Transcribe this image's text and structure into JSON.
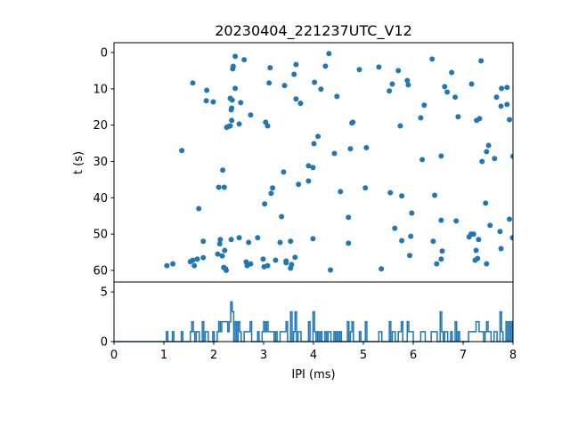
{
  "chart_data": {
    "type": "scatter",
    "title": "20230404_221237UTC_V12",
    "xlabel": "IPI (ms)",
    "ylabel": "t (s)",
    "xlim": [
      0,
      8
    ],
    "ylim": [
      63.2,
      -2.7
    ],
    "y_inverted": true,
    "grid": false,
    "color": "#1f77b4",
    "x_ticks": [
      "0",
      "1",
      "2",
      "3",
      "4",
      "5",
      "6",
      "7",
      "8"
    ],
    "y_ticks": [
      "0",
      "10",
      "20",
      "30",
      "40",
      "50",
      "60"
    ],
    "points": [
      [
        2.43,
        1.06
      ],
      [
        2.61,
        2.0
      ],
      [
        2.39,
        3.8
      ],
      [
        2.38,
        4.5
      ],
      [
        3.13,
        4.2
      ],
      [
        3.65,
        3.3
      ],
      [
        3.61,
        6.0
      ],
      [
        1.58,
        8.4
      ],
      [
        3.11,
        8.4
      ],
      [
        3.42,
        9.1
      ],
      [
        4.02,
        8.2
      ],
      [
        1.86,
        10.4
      ],
      [
        2.43,
        9.9
      ],
      [
        1.85,
        13.3
      ],
      [
        1.99,
        13.6
      ],
      [
        2.33,
        12.6
      ],
      [
        2.37,
        13.1
      ],
      [
        2.54,
        13.8
      ],
      [
        3.65,
        12.8
      ],
      [
        3.74,
        14.0
      ],
      [
        2.36,
        15.3
      ],
      [
        2.35,
        15.8
      ],
      [
        2.74,
        17.2
      ],
      [
        2.36,
        18.7
      ],
      [
        2.51,
        19.7
      ],
      [
        3.04,
        19.2
      ],
      [
        3.08,
        20.2
      ],
      [
        2.26,
        20.6
      ],
      [
        2.29,
        20.4
      ],
      [
        2.33,
        20.2
      ],
      [
        4.09,
        23.1
      ],
      [
        4.01,
        25.1
      ],
      [
        1.36,
        27.0
      ],
      [
        2.18,
        32.4
      ],
      [
        3.4,
        32.9
      ],
      [
        3.9,
        31.2
      ],
      [
        3.99,
        31.7
      ],
      [
        3.7,
        36.3
      ],
      [
        3.9,
        35.4
      ],
      [
        2.1,
        37.1
      ],
      [
        2.21,
        37.1
      ],
      [
        3.18,
        37.3
      ],
      [
        3.15,
        38.8
      ],
      [
        3.02,
        41.7
      ],
      [
        1.7,
        43.0
      ],
      [
        3.36,
        45.2
      ],
      [
        1.79,
        52.0
      ],
      [
        2.13,
        51.5
      ],
      [
        2.12,
        52.7
      ],
      [
        2.35,
        51.5
      ],
      [
        2.51,
        51.0
      ],
      [
        2.7,
        52.3
      ],
      [
        2.88,
        51.0
      ],
      [
        3.33,
        52.3
      ],
      [
        3.54,
        52.0
      ],
      [
        3.99,
        51.3
      ],
      [
        2.08,
        55.5
      ],
      [
        2.17,
        56.0
      ],
      [
        2.22,
        54.5
      ],
      [
        1.79,
        56.5
      ],
      [
        1.67,
        56.9
      ],
      [
        1.58,
        57.2
      ],
      [
        1.53,
        57.6
      ],
      [
        1.61,
        58.7
      ],
      [
        1.18,
        58.2
      ],
      [
        1.06,
        58.7
      ],
      [
        2.2,
        59.2
      ],
      [
        2.24,
        59.6
      ],
      [
        2.25,
        60.0
      ],
      [
        2.65,
        57.7
      ],
      [
        2.67,
        58.7
      ],
      [
        2.74,
        58.2
      ],
      [
        2.99,
        56.9
      ],
      [
        3.01,
        59.0
      ],
      [
        3.08,
        58.7
      ],
      [
        3.24,
        57.2
      ],
      [
        3.45,
        57.4
      ],
      [
        3.45,
        57.9
      ],
      [
        3.56,
        58.4
      ],
      [
        3.54,
        59.4
      ],
      [
        3.63,
        56.4
      ],
      [
        4.31,
        0.3
      ],
      [
        4.24,
        3.75
      ],
      [
        4.15,
        10.1
      ],
      [
        4.92,
        4.7
      ],
      [
        5.31,
        4.0
      ],
      [
        5.7,
        5.0
      ],
      [
        6.38,
        1.8
      ],
      [
        7.36,
        2.3
      ],
      [
        6.77,
        5.5
      ],
      [
        4.47,
        12.1
      ],
      [
        5.52,
        10.6
      ],
      [
        5.58,
        8.7
      ],
      [
        5.88,
        7.7
      ],
      [
        5.9,
        8.9
      ],
      [
        6.63,
        9.4
      ],
      [
        6.68,
        10.9
      ],
      [
        6.84,
        12.3
      ],
      [
        7.17,
        8.7
      ],
      [
        7.77,
        9.9
      ],
      [
        7.88,
        9.6
      ],
      [
        7.67,
        12.3
      ],
      [
        7.76,
        14.8
      ],
      [
        7.88,
        14.3
      ],
      [
        6.22,
        14.5
      ],
      [
        6.15,
        18.0
      ],
      [
        6.9,
        17.7
      ],
      [
        7.27,
        18.7
      ],
      [
        7.33,
        18.2
      ],
      [
        7.93,
        18.5
      ],
      [
        5.74,
        20.2
      ],
      [
        4.77,
        19.4
      ],
      [
        4.79,
        19.2
      ],
      [
        4.42,
        27.8
      ],
      [
        4.74,
        26.5
      ],
      [
        5.06,
        26.2
      ],
      [
        6.18,
        29.5
      ],
      [
        6.56,
        28.5
      ],
      [
        7.51,
        25.6
      ],
      [
        7.47,
        27.3
      ],
      [
        7.38,
        30.0
      ],
      [
        7.63,
        29.2
      ],
      [
        8.0,
        28.6
      ],
      [
        4.54,
        38.3
      ],
      [
        5.04,
        37.3
      ],
      [
        5.54,
        38.6
      ],
      [
        5.77,
        39.5
      ],
      [
        6.43,
        39.3
      ],
      [
        7.45,
        41.5
      ],
      [
        4.7,
        45.4
      ],
      [
        5.97,
        44.2
      ],
      [
        6.56,
        46.2
      ],
      [
        6.86,
        46.4
      ],
      [
        7.54,
        47.6
      ],
      [
        7.93,
        45.9
      ],
      [
        5.63,
        48.4
      ],
      [
        7.74,
        49.3
      ],
      [
        4.7,
        52.5
      ],
      [
        5.77,
        51.8
      ],
      [
        5.95,
        50.6
      ],
      [
        6.4,
        52.0
      ],
      [
        7.12,
        50.8
      ],
      [
        7.16,
        50.0
      ],
      [
        7.21,
        50.0
      ],
      [
        7.31,
        51.5
      ],
      [
        7.99,
        51.0
      ],
      [
        6.58,
        54.7
      ],
      [
        7.26,
        54.5
      ],
      [
        7.76,
        54.0
      ],
      [
        5.93,
        55.9
      ],
      [
        6.56,
        56.9
      ],
      [
        6.47,
        58.2
      ],
      [
        7.24,
        57.2
      ],
      [
        7.29,
        56.7
      ],
      [
        7.47,
        58.2
      ],
      [
        4.34,
        59.9
      ],
      [
        5.36,
        59.6
      ]
    ],
    "histogram": {
      "type": "step",
      "bin_width_ms": 0.03,
      "xlim": [
        0,
        8
      ],
      "ylim": [
        0,
        6
      ],
      "y_ticks": [
        "0",
        "5"
      ]
    }
  }
}
